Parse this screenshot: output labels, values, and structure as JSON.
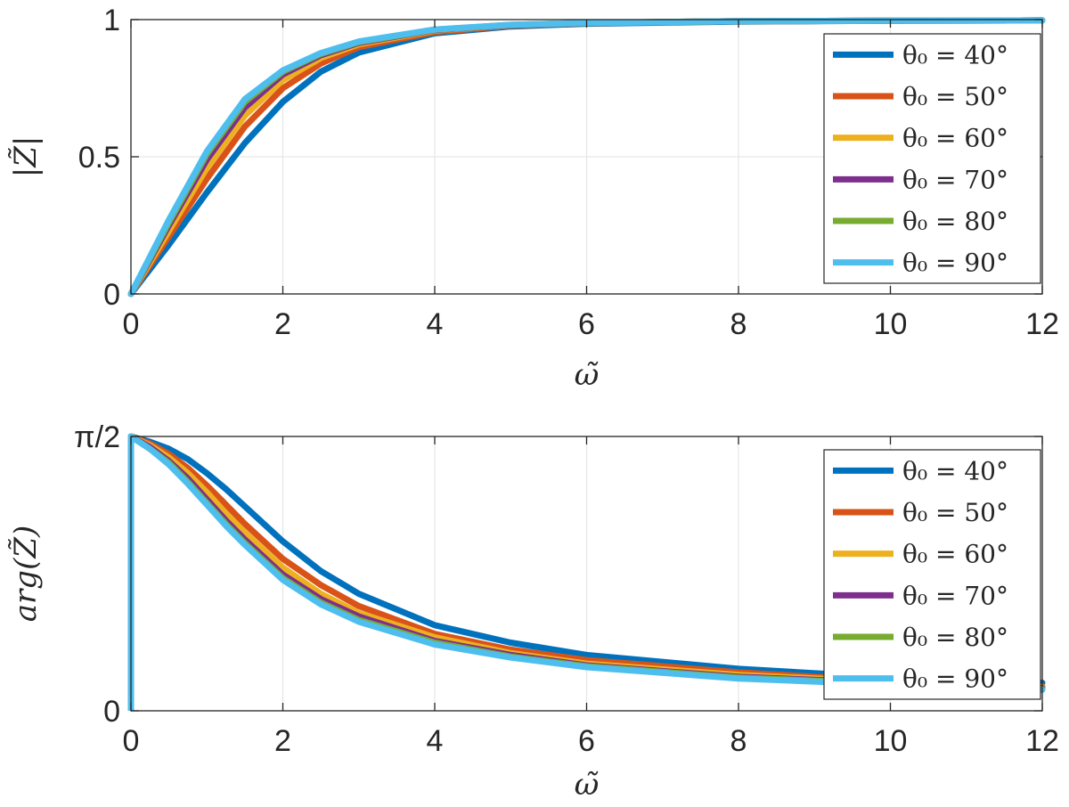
{
  "chart_data": [
    {
      "type": "line",
      "panel": "top",
      "xlabel": "ω̃",
      "ylabel": "|Z̃|",
      "xlim": [
        0,
        12
      ],
      "ylim": [
        0,
        1
      ],
      "xticks": [
        "0",
        "2",
        "4",
        "6",
        "8",
        "10",
        "12"
      ],
      "yticks": [
        "0",
        "0.5",
        "1"
      ],
      "grid": true,
      "legend_position": "top-right",
      "x": [
        0,
        0.5,
        1,
        1.5,
        2,
        2.5,
        3,
        4,
        5,
        6,
        8,
        10,
        12
      ],
      "series": [
        {
          "name": "θ₀ = 40°",
          "color": "#0072BD",
          "values": [
            0,
            0.18,
            0.37,
            0.55,
            0.7,
            0.81,
            0.88,
            0.95,
            0.975,
            0.985,
            0.993,
            0.996,
            0.997
          ]
        },
        {
          "name": "θ₀ = 50°",
          "color": "#D95319",
          "values": [
            0,
            0.21,
            0.42,
            0.61,
            0.75,
            0.84,
            0.9,
            0.955,
            0.978,
            0.987,
            0.994,
            0.996,
            0.997
          ]
        },
        {
          "name": "θ₀ = 60°",
          "color": "#EDB120",
          "values": [
            0,
            0.23,
            0.46,
            0.65,
            0.78,
            0.86,
            0.91,
            0.96,
            0.98,
            0.988,
            0.994,
            0.996,
            0.997
          ]
        },
        {
          "name": "θ₀ = 70°",
          "color": "#7E2F8E",
          "values": [
            0,
            0.25,
            0.49,
            0.68,
            0.8,
            0.87,
            0.915,
            0.962,
            0.98,
            0.988,
            0.994,
            0.996,
            0.997
          ]
        },
        {
          "name": "θ₀ = 80°",
          "color": "#77AC30",
          "values": [
            0,
            0.26,
            0.51,
            0.7,
            0.81,
            0.875,
            0.918,
            0.963,
            0.981,
            0.988,
            0.994,
            0.996,
            0.997
          ]
        },
        {
          "name": "θ₀ = 90°",
          "color": "#4DBEEE",
          "values": [
            0,
            0.27,
            0.52,
            0.71,
            0.815,
            0.878,
            0.92,
            0.964,
            0.981,
            0.988,
            0.994,
            0.996,
            0.997
          ]
        }
      ]
    },
    {
      "type": "line",
      "panel": "bottom",
      "xlabel": "ω̃",
      "ylabel": "arg(Z̃)",
      "xlim": [
        0,
        12
      ],
      "ylim": [
        0,
        1.5708
      ],
      "xticks": [
        "0",
        "2",
        "4",
        "6",
        "8",
        "10",
        "12"
      ],
      "yticks": [
        "0",
        "π/2"
      ],
      "grid": true,
      "legend_position": "top-right",
      "x": [
        0,
        0.25,
        0.5,
        0.75,
        1,
        1.25,
        1.5,
        2,
        2.5,
        3,
        4,
        5,
        6,
        8,
        10,
        12
      ],
      "series": [
        {
          "name": "θ₀ = 40°",
          "color": "#0072BD",
          "values": [
            1.5708,
            1.54,
            1.5,
            1.44,
            1.36,
            1.27,
            1.17,
            0.97,
            0.8,
            0.67,
            0.49,
            0.39,
            0.32,
            0.24,
            0.19,
            0.16
          ]
        },
        {
          "name": "θ₀ = 50°",
          "color": "#D95319",
          "values": [
            1.5708,
            1.53,
            1.47,
            1.39,
            1.29,
            1.18,
            1.07,
            0.87,
            0.72,
            0.6,
            0.44,
            0.35,
            0.29,
            0.22,
            0.17,
            0.14
          ]
        },
        {
          "name": "θ₀ = 60°",
          "color": "#EDB120",
          "values": [
            1.5708,
            1.52,
            1.45,
            1.36,
            1.25,
            1.13,
            1.02,
            0.82,
            0.67,
            0.56,
            0.42,
            0.33,
            0.27,
            0.205,
            0.165,
            0.135
          ]
        },
        {
          "name": "θ₀ = 70°",
          "color": "#7E2F8E",
          "values": [
            1.5708,
            1.51,
            1.43,
            1.33,
            1.21,
            1.09,
            0.98,
            0.78,
            0.64,
            0.54,
            0.4,
            0.32,
            0.26,
            0.195,
            0.16,
            0.13
          ]
        },
        {
          "name": "θ₀ = 80°",
          "color": "#77AC30",
          "values": [
            1.5708,
            1.5,
            1.42,
            1.31,
            1.19,
            1.07,
            0.96,
            0.76,
            0.62,
            0.52,
            0.39,
            0.31,
            0.255,
            0.19,
            0.155,
            0.125
          ]
        },
        {
          "name": "θ₀ = 90°",
          "color": "#4DBEEE",
          "values": [
            1.5708,
            1.5,
            1.41,
            1.3,
            1.18,
            1.06,
            0.95,
            0.75,
            0.61,
            0.51,
            0.38,
            0.305,
            0.25,
            0.185,
            0.15,
            0.12
          ]
        }
      ],
      "extra_segment": {
        "series_index": 5,
        "x": [
          0,
          0
        ],
        "values": [
          0,
          1.5708
        ]
      }
    }
  ]
}
